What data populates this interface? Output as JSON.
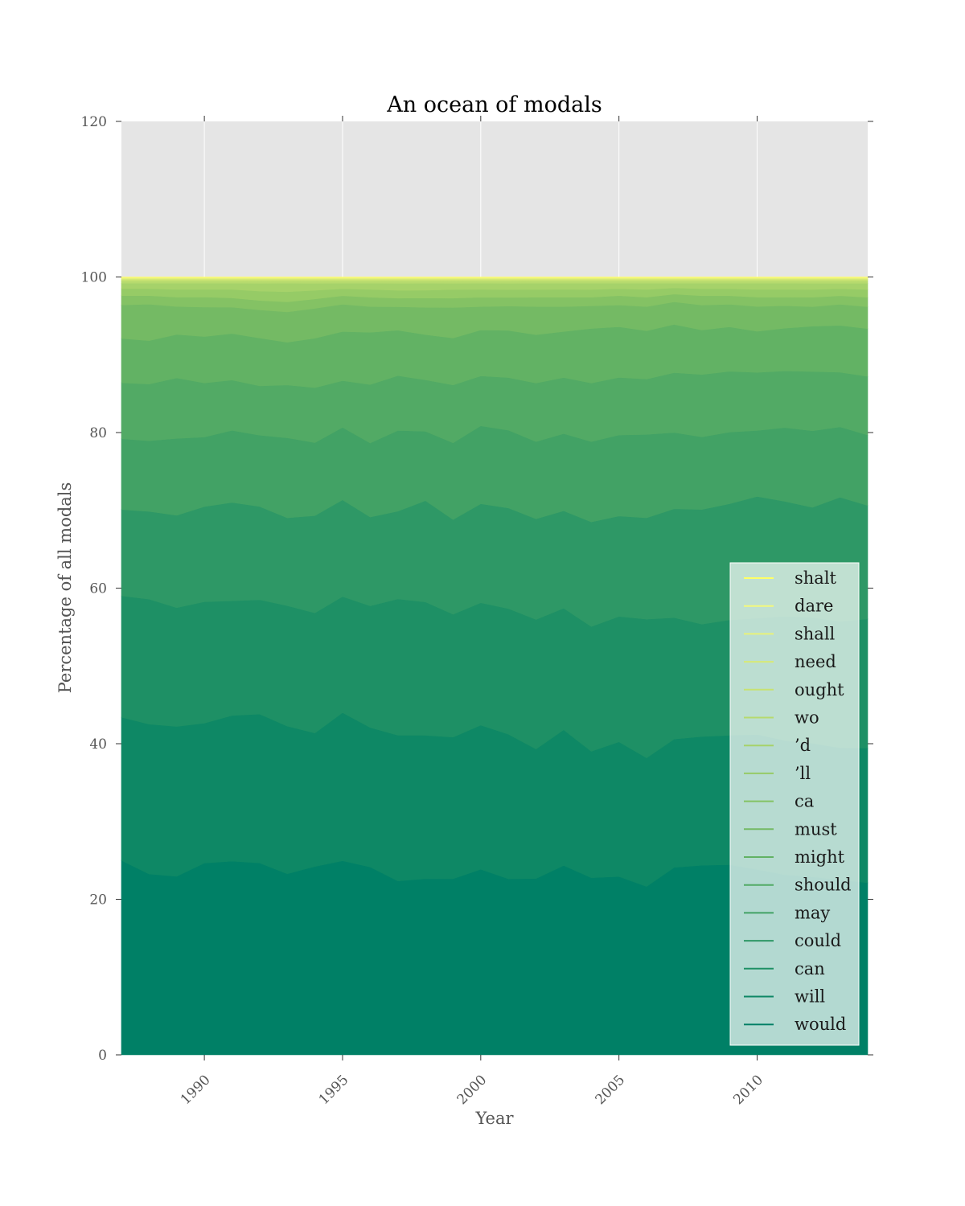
{
  "chart_data": {
    "type": "area",
    "stacked": true,
    "title": "An ocean of modals",
    "xlabel": "Year",
    "ylabel": "Percentage of all modals",
    "xlim": [
      1987,
      2014
    ],
    "ylim": [
      0,
      120
    ],
    "x_ticks": [
      1990,
      1995,
      2000,
      2005,
      2010
    ],
    "y_ticks": [
      0,
      20,
      40,
      60,
      80,
      100,
      120
    ],
    "grid": true,
    "legend_position": "lower-right",
    "background_color": "#e5e5e5",
    "x": [
      1987,
      1988,
      1989,
      1990,
      1991,
      1992,
      1993,
      1994,
      1995,
      1996,
      1997,
      1998,
      1999,
      2000,
      2001,
      2002,
      2003,
      2004,
      2005,
      2006,
      2007,
      2008,
      2009,
      2010,
      2011,
      2012,
      2013,
      2014
    ],
    "series": [
      {
        "name": "would",
        "color": "#008066",
        "values": [
          25.0,
          23.3,
          23.0,
          24.8,
          25.0,
          24.5,
          23.3,
          24.0,
          24.9,
          24.1,
          22.2,
          22.6,
          22.5,
          23.8,
          22.4,
          22.6,
          24.3,
          22.7,
          22.9,
          21.6,
          24.1,
          24.3,
          24.4,
          23.9,
          23.2,
          22.8,
          22.4,
          22.0
        ]
      },
      {
        "name": "will",
        "color": "#0e8865",
        "values": [
          18.4,
          19.3,
          19.3,
          18.1,
          18.8,
          19.0,
          19.0,
          17.0,
          19.0,
          17.9,
          18.6,
          18.4,
          18.1,
          18.5,
          18.4,
          16.6,
          17.4,
          16.2,
          17.3,
          16.5,
          16.5,
          16.5,
          16.6,
          17.4,
          17.3,
          17.1,
          16.9,
          17.2
        ]
      },
      {
        "name": "can",
        "color": "#1e9065",
        "values": [
          15.6,
          16.1,
          15.3,
          15.7,
          14.8,
          14.6,
          15.5,
          15.3,
          14.9,
          15.6,
          17.4,
          17.1,
          15.7,
          15.7,
          16.0,
          16.6,
          15.6,
          16.0,
          16.1,
          17.8,
          15.6,
          14.4,
          14.8,
          15.0,
          16.0,
          16.1,
          16.2,
          16.5
        ]
      },
      {
        "name": "could",
        "color": "#2e9866",
        "values": [
          11.1,
          11.3,
          11.9,
          12.3,
          12.7,
          11.9,
          11.3,
          12.4,
          12.4,
          11.4,
          11.2,
          13.0,
          12.1,
          12.7,
          12.8,
          12.9,
          12.5,
          13.4,
          12.9,
          13.0,
          14.0,
          14.7,
          14.9,
          15.7,
          14.8,
          14.1,
          15.9,
          14.5
        ]
      },
      {
        "name": "may",
        "color": "#42a265",
        "values": [
          9.1,
          9.1,
          9.9,
          9.0,
          9.3,
          9.1,
          10.3,
          9.3,
          9.3,
          9.5,
          10.3,
          8.9,
          9.8,
          10.0,
          9.9,
          9.9,
          9.9,
          10.3,
          10.4,
          10.7,
          9.8,
          9.3,
          9.2,
          8.5,
          9.5,
          9.8,
          9.0,
          9.0
        ]
      },
      {
        "name": "should",
        "color": "#52aa65",
        "values": [
          7.2,
          7.3,
          7.8,
          7.0,
          6.5,
          6.3,
          6.8,
          7.0,
          6.0,
          7.5,
          7.0,
          6.6,
          7.4,
          6.4,
          6.7,
          7.5,
          7.2,
          7.5,
          7.4,
          7.1,
          7.7,
          8.0,
          7.8,
          7.5,
          7.3,
          7.6,
          7.0,
          7.5
        ]
      },
      {
        "name": "might",
        "color": "#62b264",
        "values": [
          5.7,
          5.6,
          5.6,
          6.0,
          6.0,
          6.1,
          5.5,
          6.3,
          6.3,
          6.7,
          5.8,
          5.8,
          6.0,
          5.9,
          6.0,
          6.2,
          5.9,
          7.0,
          6.5,
          6.2,
          6.2,
          5.7,
          5.7,
          5.3,
          5.5,
          5.8,
          6.0,
          6.1
        ]
      },
      {
        "name": "must",
        "color": "#74ba64",
        "values": [
          4.3,
          4.7,
          3.6,
          3.8,
          3.4,
          3.6,
          3.9,
          3.8,
          3.5,
          3.3,
          3.0,
          3.5,
          3.9,
          3.0,
          3.1,
          3.6,
          3.2,
          2.9,
          2.8,
          3.1,
          2.9,
          3.2,
          2.9,
          3.2,
          2.9,
          2.5,
          2.7,
          2.8
        ]
      },
      {
        "name": "ca",
        "color": "#84c264",
        "values": [
          1.2,
          1.1,
          1.2,
          1.3,
          1.2,
          1.2,
          1.3,
          1.2,
          1.1,
          1.2,
          1.1,
          1.2,
          1.2,
          1.2,
          1.1,
          1.2,
          1.2,
          1.1,
          1.2,
          1.2,
          1.0,
          1.2,
          1.1,
          1.2,
          1.1,
          1.2,
          1.1,
          1.2
        ]
      },
      {
        "name": "’ll",
        "color": "#96cb66",
        "values": [
          0.9,
          0.9,
          1.0,
          1.0,
          1.1,
          1.2,
          1.3,
          1.1,
          0.9,
          1.0,
          1.0,
          1.0,
          1.1,
          1.0,
          1.0,
          1.0,
          1.0,
          1.0,
          0.9,
          1.0,
          0.8,
          0.9,
          0.9,
          1.0,
          1.0,
          1.0,
          0.9,
          1.0
        ]
      },
      {
        "name": "’d",
        "color": "#a6d26a",
        "values": [
          0.7,
          0.7,
          0.8,
          0.8,
          0.8,
          1.0,
          1.1,
          0.9,
          0.7,
          0.8,
          0.9,
          0.9,
          0.8,
          0.8,
          0.8,
          0.8,
          0.8,
          0.8,
          0.7,
          0.8,
          0.6,
          0.7,
          0.7,
          0.8,
          0.8,
          0.8,
          0.7,
          0.8
        ]
      },
      {
        "name": "wo",
        "color": "#b6da6e",
        "values": [
          0.3,
          0.3,
          0.3,
          0.3,
          0.3,
          0.3,
          0.3,
          0.3,
          0.3,
          0.3,
          0.3,
          0.3,
          0.3,
          0.3,
          0.3,
          0.3,
          0.3,
          0.3,
          0.3,
          0.3,
          0.3,
          0.3,
          0.3,
          0.3,
          0.3,
          0.3,
          0.3,
          0.3
        ]
      },
      {
        "name": "ought",
        "color": "#c8e272",
        "values": [
          0.2,
          0.2,
          0.2,
          0.2,
          0.2,
          0.2,
          0.2,
          0.2,
          0.2,
          0.2,
          0.2,
          0.2,
          0.2,
          0.2,
          0.2,
          0.2,
          0.2,
          0.2,
          0.2,
          0.2,
          0.2,
          0.2,
          0.2,
          0.2,
          0.2,
          0.2,
          0.2,
          0.2
        ]
      },
      {
        "name": "need",
        "color": "#d8ea76",
        "values": [
          0.1,
          0.1,
          0.1,
          0.1,
          0.1,
          0.1,
          0.1,
          0.1,
          0.1,
          0.1,
          0.1,
          0.1,
          0.1,
          0.1,
          0.1,
          0.1,
          0.1,
          0.1,
          0.1,
          0.1,
          0.1,
          0.1,
          0.1,
          0.1,
          0.1,
          0.1,
          0.1,
          0.1
        ]
      },
      {
        "name": "shall",
        "color": "#e8f27a",
        "values": [
          0.1,
          0.1,
          0.1,
          0.1,
          0.1,
          0.1,
          0.1,
          0.1,
          0.1,
          0.1,
          0.1,
          0.1,
          0.1,
          0.1,
          0.1,
          0.1,
          0.1,
          0.1,
          0.1,
          0.1,
          0.1,
          0.1,
          0.1,
          0.1,
          0.1,
          0.1,
          0.1,
          0.1
        ]
      },
      {
        "name": "dare",
        "color": "#f2f87c",
        "values": [
          0.05,
          0.05,
          0.05,
          0.05,
          0.05,
          0.05,
          0.05,
          0.05,
          0.05,
          0.05,
          0.05,
          0.05,
          0.05,
          0.05,
          0.05,
          0.05,
          0.05,
          0.05,
          0.05,
          0.05,
          0.05,
          0.05,
          0.05,
          0.05,
          0.05,
          0.05,
          0.05,
          0.05
        ]
      },
      {
        "name": "shalt",
        "color": "#ffff66",
        "values": [
          0.05,
          0.05,
          0.05,
          0.05,
          0.05,
          0.05,
          0.05,
          0.05,
          0.05,
          0.05,
          0.05,
          0.05,
          0.05,
          0.05,
          0.05,
          0.05,
          0.05,
          0.05,
          0.05,
          0.05,
          0.05,
          0.05,
          0.05,
          0.05,
          0.05,
          0.05,
          0.05,
          0.05
        ]
      }
    ]
  }
}
